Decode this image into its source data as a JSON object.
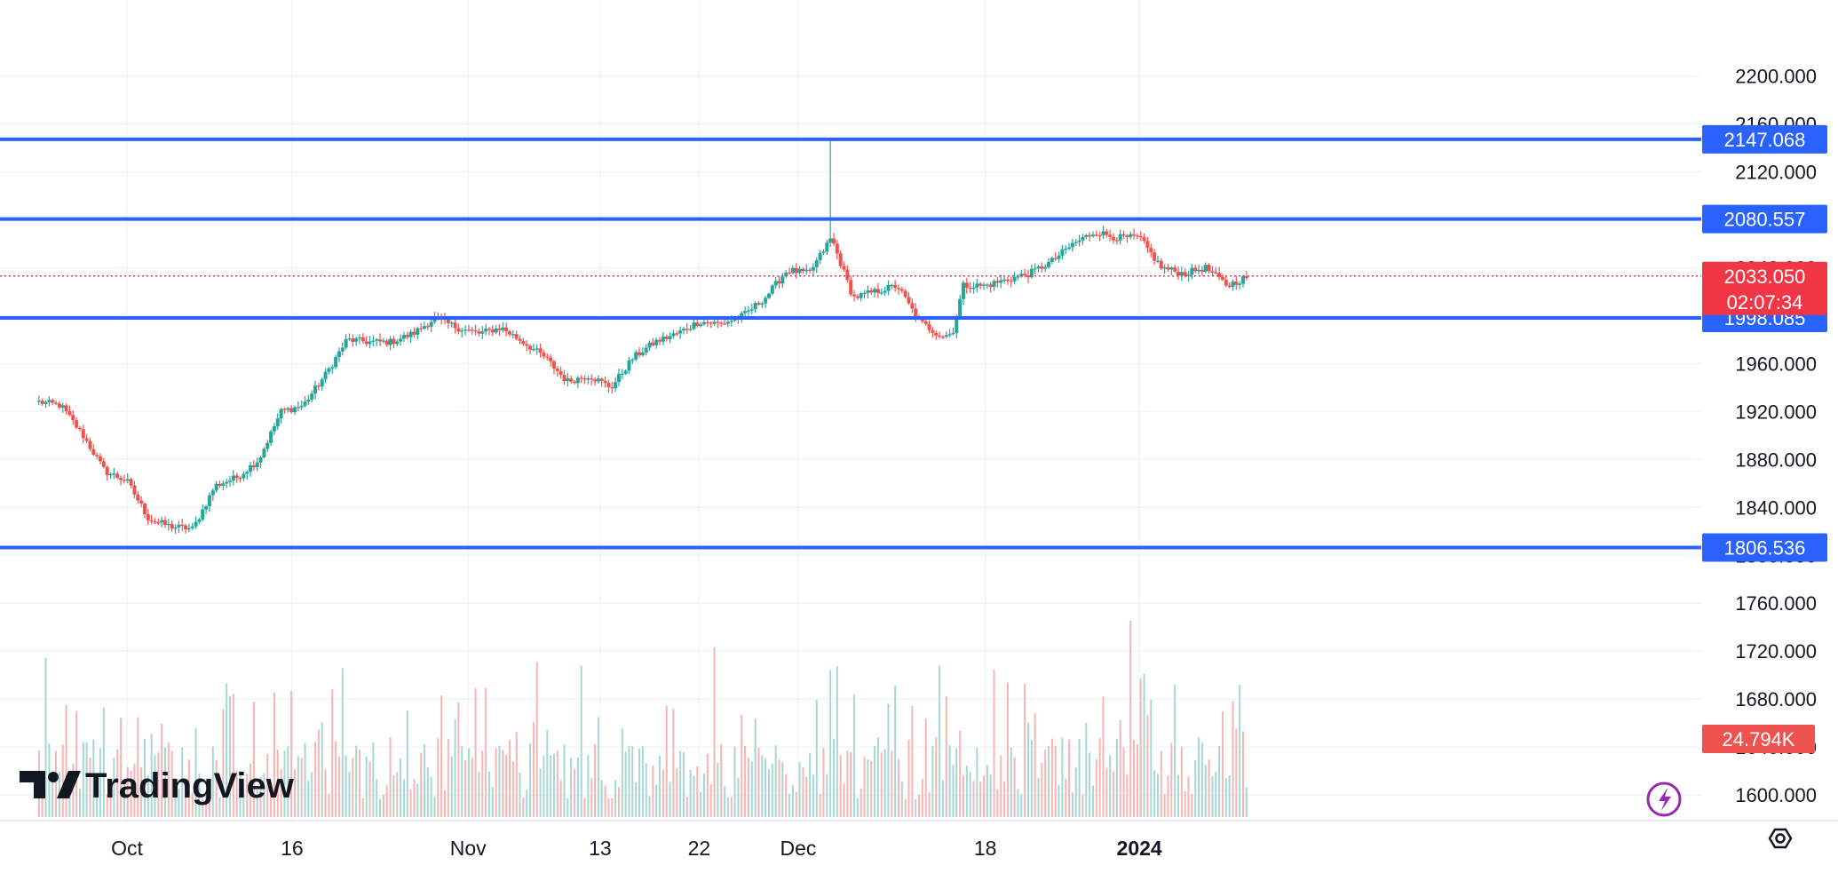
{
  "brand": {
    "name": "TradingView"
  },
  "colors": {
    "up": "#26a69a",
    "down": "#ef5350",
    "level_line": "#2962ff",
    "grid": "#f0f3fa",
    "text": "#131722",
    "price_tag": "#f23645",
    "volume_up": "#a6d8d3",
    "volume_down": "#f7b5b3"
  },
  "icons": {
    "flash": "lightning-icon",
    "settings": "gear-icon"
  },
  "chart_data": {
    "type": "candlestick",
    "title": "",
    "price_axis": {
      "range": [
        1589,
        2215
      ],
      "ticks": [
        "1600.000",
        "1640.000",
        "1680.000",
        "1720.000",
        "1760.000",
        "1800.000",
        "1840.000",
        "1880.000",
        "1920.000",
        "1960.000",
        "2000.000",
        "2040.000",
        "2080.000",
        "2120.000",
        "2160.000",
        "2200.000"
      ]
    },
    "time_axis": {
      "range": [
        "2023-09-23",
        "2024-01-14"
      ],
      "labels": [
        {
          "text": "Oct",
          "date": "2023-10-01",
          "bold": false
        },
        {
          "text": "16",
          "date": "2023-10-16",
          "bold": false
        },
        {
          "text": "Nov",
          "date": "2023-11-01",
          "bold": false
        },
        {
          "text": "13",
          "date": "2023-11-13",
          "bold": false
        },
        {
          "text": "22",
          "date": "2023-11-22",
          "bold": false
        },
        {
          "text": "Dec",
          "date": "2023-12-01",
          "bold": false
        },
        {
          "text": "18",
          "date": "2023-12-18",
          "bold": false
        },
        {
          "text": "2024",
          "date": "2024-01-01",
          "bold": true
        }
      ]
    },
    "horizontal_levels": [
      {
        "value": 2147.068,
        "label": "2147.068"
      },
      {
        "value": 2080.557,
        "label": "2080.557"
      },
      {
        "value": 1998.085,
        "label": "1998.085"
      },
      {
        "value": 1806.536,
        "label": "1806.536"
      }
    ],
    "last_price": {
      "value": 2033.05,
      "label": "2033.050",
      "countdown": "02:07:34"
    },
    "last_volume": {
      "label": "24.794K"
    },
    "price_path": [
      [
        "2023-09-23",
        1928
      ],
      [
        "2023-09-25",
        1925
      ],
      [
        "2023-09-27",
        1900
      ],
      [
        "2023-09-29",
        1870
      ],
      [
        "2023-10-01",
        1862
      ],
      [
        "2023-10-03",
        1830
      ],
      [
        "2023-10-05",
        1824
      ],
      [
        "2023-10-07",
        1822
      ],
      [
        "2023-10-09",
        1858
      ],
      [
        "2023-10-11",
        1865
      ],
      [
        "2023-10-13",
        1880
      ],
      [
        "2023-10-15",
        1920
      ],
      [
        "2023-10-17",
        1925
      ],
      [
        "2023-10-19",
        1950
      ],
      [
        "2023-10-21",
        1980
      ],
      [
        "2023-10-23",
        1978
      ],
      [
        "2023-10-25",
        1978
      ],
      [
        "2023-10-27",
        1985
      ],
      [
        "2023-10-29",
        1998
      ],
      [
        "2023-10-31",
        1990
      ],
      [
        "2023-11-02",
        1985
      ],
      [
        "2023-11-04",
        1990
      ],
      [
        "2023-11-06",
        1978
      ],
      [
        "2023-11-08",
        1965
      ],
      [
        "2023-11-10",
        1945
      ],
      [
        "2023-11-12",
        1950
      ],
      [
        "2023-11-14",
        1940
      ],
      [
        "2023-11-16",
        1965
      ],
      [
        "2023-11-18",
        1978
      ],
      [
        "2023-11-20",
        1985
      ],
      [
        "2023-11-22",
        1995
      ],
      [
        "2023-11-24",
        1993
      ],
      [
        "2023-11-26",
        2000
      ],
      [
        "2023-11-28",
        2015
      ],
      [
        "2023-11-30",
        2038
      ],
      [
        "2023-12-02",
        2035
      ],
      [
        "2023-12-04",
        2065
      ],
      [
        "2023-12-06",
        2015
      ],
      [
        "2023-12-08",
        2020
      ],
      [
        "2023-12-10",
        2025
      ],
      [
        "2023-12-12",
        1995
      ],
      [
        "2023-12-14",
        1983
      ],
      [
        "2023-12-15",
        1985
      ],
      [
        "2023-12-16",
        2025
      ],
      [
        "2023-12-18",
        2025
      ],
      [
        "2023-12-20",
        2030
      ],
      [
        "2023-12-22",
        2035
      ],
      [
        "2023-12-24",
        2045
      ],
      [
        "2023-12-26",
        2060
      ],
      [
        "2023-12-28",
        2070
      ],
      [
        "2023-12-30",
        2065
      ],
      [
        "2024-01-01",
        2065
      ],
      [
        "2024-01-03",
        2040
      ],
      [
        "2024-01-05",
        2035
      ],
      [
        "2024-01-07",
        2040
      ],
      [
        "2024-01-09",
        2025
      ],
      [
        "2024-01-11",
        2033
      ]
    ],
    "spikes": [
      {
        "date": "2023-12-04",
        "high": 2147
      }
    ]
  }
}
